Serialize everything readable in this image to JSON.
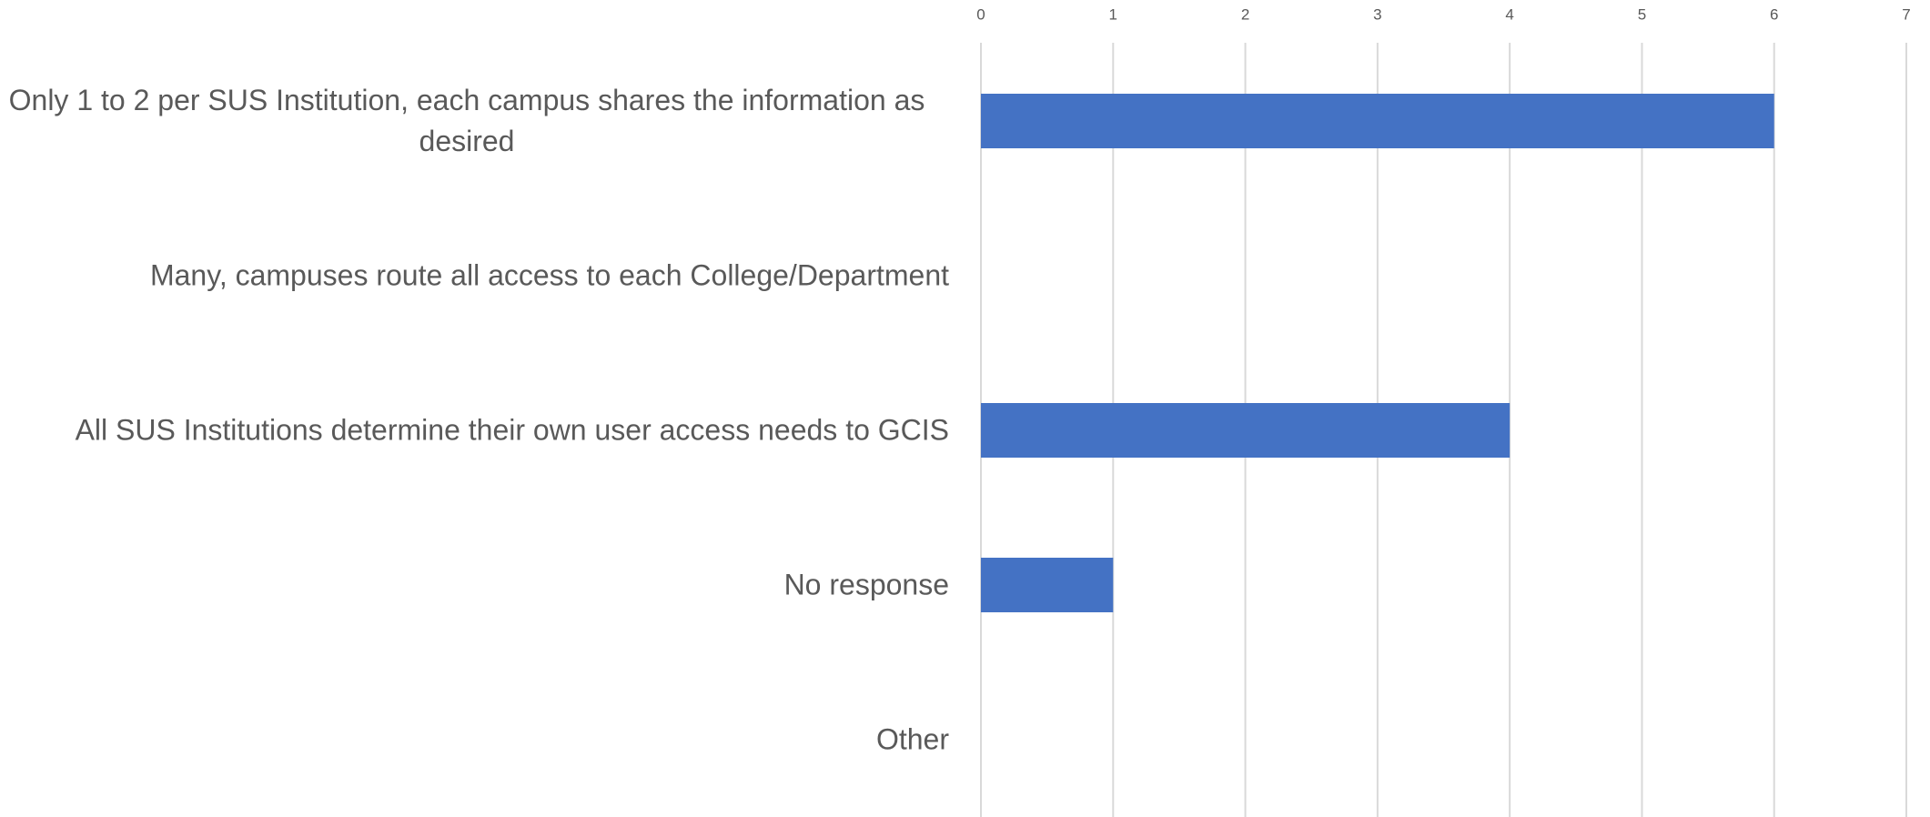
{
  "chart_data": {
    "type": "barh",
    "categories": [
      "Only 1 to 2 per SUS Institution, each campus shares the information as desired",
      "Many, campuses route all access to each College/Department",
      "All SUS Institutions determine their own user access needs to GCIS",
      "No response",
      "Other"
    ],
    "values": [
      6,
      0,
      4,
      1,
      0
    ],
    "color": "#4472c4",
    "xlim": [
      0,
      7
    ],
    "xticks": [
      0,
      1,
      2,
      3,
      4,
      5,
      6,
      7
    ],
    "grid": true
  }
}
